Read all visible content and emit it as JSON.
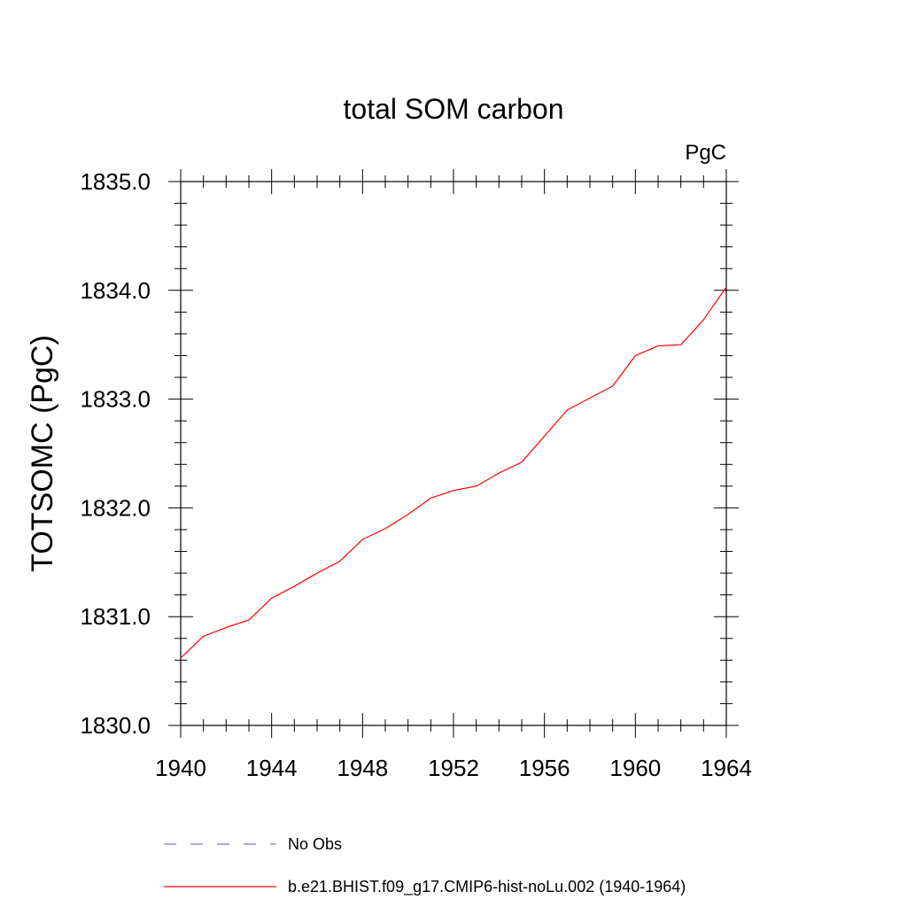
{
  "chart_data": {
    "type": "line",
    "title": "total SOM carbon",
    "units_label": "PgC",
    "ylabel": "TOTSOMC  (PgC)",
    "xlabel": "",
    "xlim": [
      1940,
      1964
    ],
    "ylim": [
      1830.0,
      1835.0
    ],
    "x_ticks": [
      "1940",
      "1944",
      "1948",
      "1952",
      "1956",
      "1960",
      "1964"
    ],
    "y_ticks": [
      "1830.0",
      "1831.0",
      "1832.0",
      "1833.0",
      "1834.0",
      "1835.0"
    ],
    "x": [
      1940,
      1941,
      1942,
      1943,
      1944,
      1945,
      1946,
      1947,
      1948,
      1949,
      1950,
      1951,
      1952,
      1953,
      1954,
      1955,
      1956,
      1957,
      1958,
      1959,
      1960,
      1961,
      1962,
      1963,
      1964
    ],
    "series": [
      {
        "name": "b.e21.BHIST.f09_g17.CMIP6-hist-noLu.002 (1940-1964)",
        "color": "#ff0000",
        "style": "solid",
        "values": [
          1830.62,
          1830.82,
          1830.9,
          1830.97,
          1831.17,
          1831.28,
          1831.4,
          1831.51,
          1831.71,
          1831.81,
          1831.94,
          1832.09,
          1832.16,
          1832.2,
          1832.32,
          1832.42,
          1832.66,
          1832.9,
          1833.01,
          1833.12,
          1833.4,
          1833.49,
          1833.5,
          1833.73,
          1834.03
        ]
      }
    ],
    "legend": [
      {
        "label": "No Obs",
        "color": "#7b7bc8",
        "style": "dashed"
      },
      {
        "label": "b.e21.BHIST.f09_g17.CMIP6-hist-noLu.002 (1940-1964)",
        "color": "#ff0000",
        "style": "solid"
      }
    ],
    "legend_position": "bottom",
    "grid": false
  }
}
